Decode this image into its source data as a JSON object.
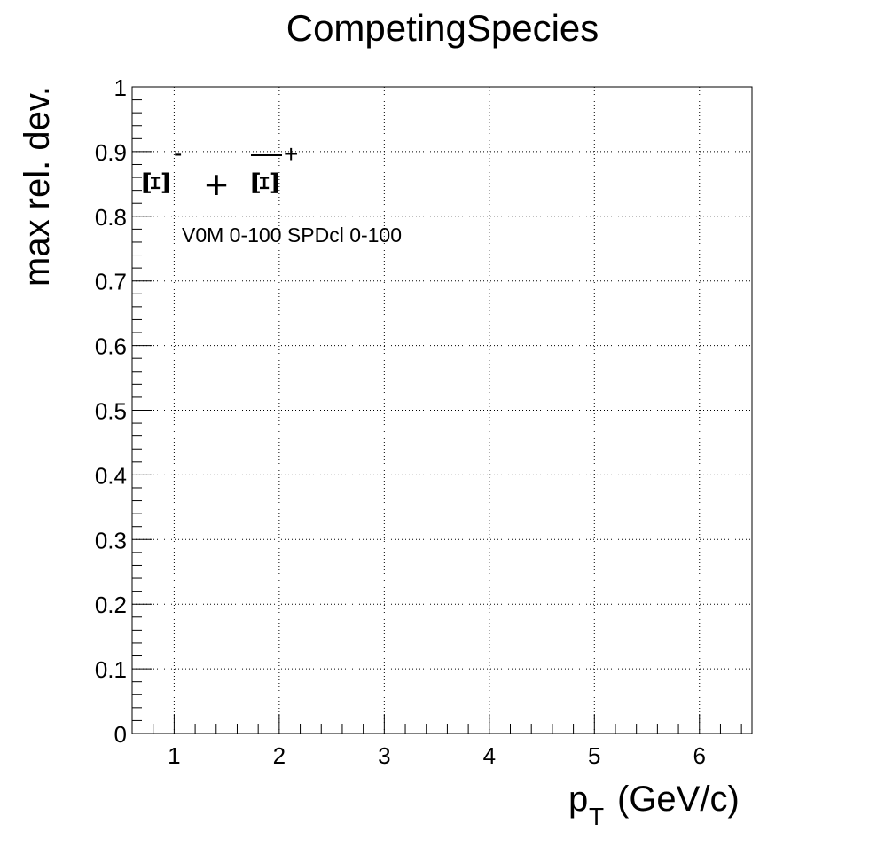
{
  "chart_data": {
    "type": "line",
    "title": "CompetingSpecies",
    "xlabel_main": "p",
    "xlabel_sub": "T",
    "xlabel_units": "(GeV/c)",
    "ylabel": "max rel. dev.",
    "xlim": [
      0.6,
      6.5
    ],
    "ylim": [
      0,
      1
    ],
    "grid": true,
    "x_ticks": [
      1,
      2,
      3,
      4,
      5,
      6
    ],
    "x_tick_labels": [
      "1",
      "2",
      "3",
      "4",
      "5",
      "6"
    ],
    "y_ticks": [
      0,
      0.1,
      0.2,
      0.3,
      0.4,
      0.5,
      0.6,
      0.7,
      0.8,
      0.9,
      1
    ],
    "y_tick_labels": [
      "0",
      "0.1",
      "0.2",
      "0.3",
      "0.4",
      "0.5",
      "0.6",
      "0.7",
      "0.8",
      "0.9",
      "1"
    ],
    "annotations": {
      "particle_1": "Ξ",
      "particle_1_charge": "-",
      "plus_sign": "+",
      "particle_2": "Ξ",
      "particle_2_charge": "+",
      "selection": "V0M 0-100 SPDcl 0-100"
    },
    "series": []
  }
}
